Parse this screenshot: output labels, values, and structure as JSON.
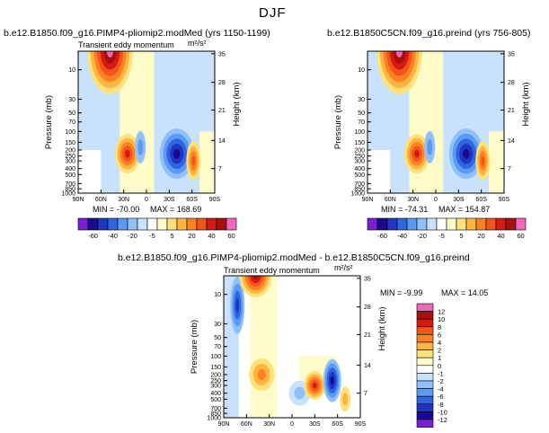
{
  "page": {
    "title": "DJF"
  },
  "colors": {
    "palette": [
      "#7a1fd6",
      "#1a0a8c",
      "#1f36c4",
      "#2f66e0",
      "#5b9af2",
      "#8fc0f8",
      "#c8e2fb",
      "#ffffff",
      "#fdfbc8",
      "#fde17a",
      "#fdb441",
      "#fb8124",
      "#f2541a",
      "#d61a12",
      "#a80f0f",
      "#f268b8"
    ]
  },
  "chart_data": [
    {
      "type": "contour",
      "title": "b.e12.B1850.f09_g16.PIMP4-pliomip2.modMed (yrs 1150-1199)",
      "left_label": "Transient eddy momentum",
      "units": "m²/s²",
      "xlabel": "",
      "ylabel": "Pressure (mb)",
      "y2label": "Height (km)",
      "x_ticks": [
        "90N",
        "60N",
        "30N",
        "0",
        "30S",
        "60S",
        "90S"
      ],
      "y_ticks": [
        "10",
        "30",
        "50",
        "70",
        "100",
        "150",
        "200",
        "250",
        "300",
        "400",
        "500",
        "700",
        "850",
        "1000"
      ],
      "y2_ticks": [
        "35",
        "28",
        "21",
        "14",
        "7"
      ],
      "min": -70.0,
      "max": 168.69,
      "min_label": "MIN = -70.00",
      "max_label": "MAX = 168.69",
      "features": [
        {
          "lat": 48,
          "p": 10,
          "value": 60
        },
        {
          "lat": 24,
          "p": 250,
          "value": 20
        },
        {
          "lat": -40,
          "p": 250,
          "value": -40
        },
        {
          "lat": -63,
          "p": 300,
          "value": 20
        }
      ]
    },
    {
      "type": "contour",
      "title": "b.e12.B1850C5CN.f09_g16.preind (yrs 756-805)",
      "left_label": "",
      "units": "",
      "xlabel": "",
      "ylabel": "Pressure (mb)",
      "y2label": "Height (km)",
      "x_ticks": [
        "90N",
        "60N",
        "30N",
        "0",
        "30S",
        "60S",
        "90S"
      ],
      "y_ticks": [
        "10",
        "30",
        "50",
        "70",
        "100",
        "150",
        "200",
        "250",
        "300",
        "400",
        "500",
        "700",
        "850",
        "1000"
      ],
      "y2_ticks": [
        "35",
        "28",
        "21",
        "14",
        "7"
      ],
      "min": -74.31,
      "max": 154.87,
      "min_label": "MIN = -74.31",
      "max_label": "MAX = 154.87",
      "features": [
        {
          "lat": 48,
          "p": 10,
          "value": 60
        },
        {
          "lat": 24,
          "p": 250,
          "value": 20
        },
        {
          "lat": -40,
          "p": 250,
          "value": -40
        },
        {
          "lat": -63,
          "p": 300,
          "value": 20
        }
      ]
    },
    {
      "type": "contour",
      "title": "b.e12.B1850.f09_g16.PIMP4-pliomip2.modMed - b.e12.B1850C5CN.f09_g16.preind",
      "left_label": "Transient eddy momentum",
      "units": "m²/s²",
      "xlabel": "",
      "ylabel": "Pressure (mb)",
      "y2label": "Height (km)",
      "x_ticks": [
        "90N",
        "60N",
        "30N",
        "0",
        "30S",
        "60S",
        "90S"
      ],
      "y_ticks": [
        "10",
        "30",
        "50",
        "70",
        "100",
        "150",
        "200",
        "250",
        "300",
        "400",
        "500",
        "700",
        "850",
        "1000"
      ],
      "y2_ticks": [
        "35",
        "28",
        "21",
        "14",
        "7"
      ],
      "min": -9.99,
      "max": 14.05,
      "min_label": "MIN = -9.99",
      "max_label": "MAX = 14.05",
      "features": [
        {
          "lat": 72,
          "p": 15,
          "value": -6
        },
        {
          "lat": 48,
          "p": 10,
          "value": 10
        },
        {
          "lat": -30,
          "p": 300,
          "value": 8
        },
        {
          "lat": -53,
          "p": 250,
          "value": -8
        }
      ]
    }
  ],
  "colorbar_horizontal": {
    "labels": [
      "-60",
      "-40",
      "-20",
      "-5",
      "5",
      "20",
      "40",
      "60"
    ]
  },
  "colorbar_vertical": {
    "labels": [
      "12",
      "10",
      "8",
      "6",
      "4",
      "2",
      "1",
      "0",
      "-1",
      "-2",
      "-4",
      "-6",
      "-8",
      "-10",
      "-12"
    ]
  }
}
